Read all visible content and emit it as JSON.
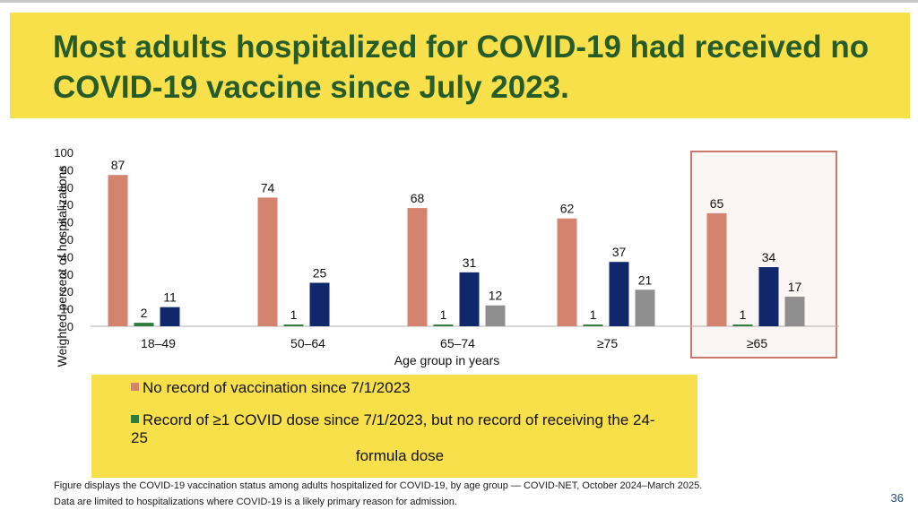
{
  "slide": {
    "title": "Most adults hospitalized for COVID-19 had received no COVID-19 vaccine since July 2023.",
    "footnote_1": "Figure displays the COVID-19 vaccination status among adults hospitalized for COVID-19, by age group — COVID-NET, October 2024–March 2025.",
    "footnote_2": "Data are limited to hospitalizations where COVID-19 is a likely primary reason for admission.",
    "slide_number": "36"
  },
  "legend": [
    {
      "label": "No record of vaccination since 7/1/2023",
      "color": "#d4836f"
    },
    {
      "label": "Record of ≥1 COVID dose since 7/1/2023, but no record of receiving the 24-25",
      "label_cont": "formula dose",
      "color": "#2e7d3e"
    }
  ],
  "chart_data": {
    "type": "bar",
    "xlabel": "Age group in years",
    "ylabel": "Weighted percent of hospitalizations",
    "ylim": [
      0,
      100
    ],
    "yticks": [
      0,
      10,
      20,
      30,
      40,
      50,
      60,
      70,
      80,
      90,
      100
    ],
    "grid": false,
    "categories": [
      "18–49",
      "50–64",
      "65–74",
      "≥75",
      "≥65"
    ],
    "highlight_category": "≥65",
    "series": [
      {
        "color": "#d4836f",
        "values": [
          87,
          74,
          68,
          62,
          65
        ]
      },
      {
        "color": "#2e7d3e",
        "values": [
          2,
          1,
          1,
          1,
          1
        ]
      },
      {
        "color": "#10286b",
        "values": [
          11,
          25,
          31,
          37,
          34
        ]
      },
      {
        "color": "#8f8f8f",
        "values": [
          null,
          null,
          12,
          21,
          17
        ]
      }
    ]
  }
}
